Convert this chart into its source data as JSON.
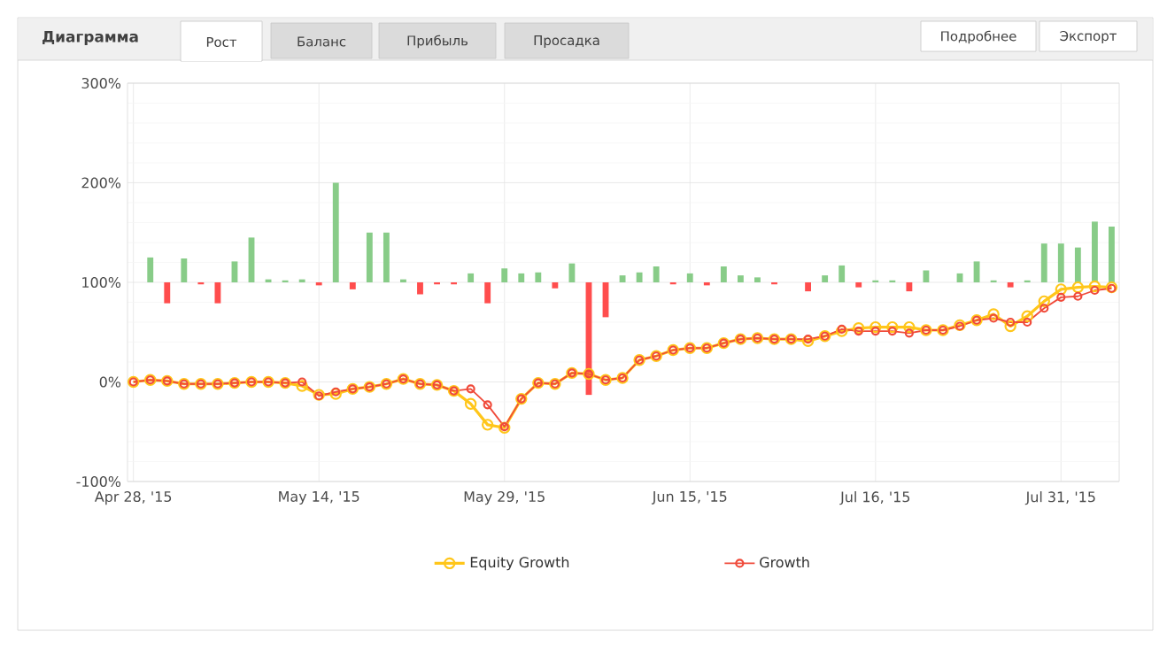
{
  "chart_data": {
    "type": "line",
    "title": "Диаграмма",
    "annotations": [
      "Рост",
      "Баланс",
      "Прибыль",
      "Просадка",
      "Подробнее",
      "Экспорт"
    ],
    "categories": [
      "Apr 28, '15",
      null,
      null,
      null,
      null,
      null,
      null,
      null,
      null,
      null,
      null,
      "May 14, '15",
      null,
      null,
      null,
      null,
      null,
      null,
      null,
      null,
      null,
      null,
      "May 29, '15",
      null,
      null,
      null,
      null,
      null,
      null,
      null,
      null,
      null,
      null,
      "Jun 15, '15",
      null,
      null,
      null,
      null,
      null,
      null,
      null,
      null,
      null,
      null,
      "Jul 16, '15",
      null,
      null,
      null,
      null,
      null,
      null,
      null,
      null,
      null,
      null,
      "Jul 31, '15",
      null,
      null,
      null
    ],
    "ylim": [
      -100,
      300
    ],
    "yticks": [
      {
        "value": -100,
        "label": "-100%"
      },
      {
        "value": 0,
        "label": "0%"
      },
      {
        "value": 100,
        "label": "100%"
      },
      {
        "value": 200,
        "label": "200%"
      },
      {
        "value": 300,
        "label": "300%"
      }
    ],
    "grid": true,
    "legend": "bottom",
    "marker": "circle",
    "line_style": "solid",
    "series": [
      {
        "type": "bar",
        "values": [
          null,
          25,
          -21,
          24,
          -2,
          -21,
          21,
          45,
          3,
          2,
          3,
          -3,
          100,
          -7,
          50,
          50,
          3,
          -12,
          -2,
          -2,
          9,
          -21,
          14,
          9,
          10,
          -6,
          19,
          -113,
          -35,
          7,
          10,
          16,
          -2,
          9,
          -3,
          16,
          7,
          5,
          -2,
          null,
          -9,
          7,
          17,
          -5,
          2,
          2,
          -9,
          12,
          null,
          9,
          21,
          2,
          -5,
          2,
          39,
          39,
          35,
          61,
          56
        ],
        "base": [
          null,
          100,
          100,
          100,
          100,
          100,
          100,
          100,
          100,
          100,
          100,
          100,
          100,
          100,
          100,
          100,
          100,
          100,
          100,
          100,
          100,
          100,
          100,
          100,
          100,
          100,
          100,
          100,
          100,
          100,
          100,
          100,
          100,
          100,
          100,
          100,
          100,
          100,
          100,
          null,
          100,
          100,
          100,
          100,
          100,
          100,
          100,
          100,
          null,
          100,
          100,
          100,
          100,
          100,
          100,
          100,
          100,
          100,
          100
        ],
        "colors": [
          null,
          "#88cc88",
          "#ff4d4d",
          "#88cc88",
          "#ff4d4d",
          "#ff4d4d",
          "#88cc88",
          "#88cc88",
          "#88cc88",
          "#88cc88",
          "#88cc88",
          "#ff4d4d",
          "#88cc88",
          "#ff4d4d",
          "#88cc88",
          "#88cc88",
          "#88cc88",
          "#ff4d4d",
          "#ff4d4d",
          "#ff4d4d",
          "#88cc88",
          "#ff4d4d",
          "#88cc88",
          "#88cc88",
          "#88cc88",
          "#ff4d4d",
          "#88cc88",
          "#ff4d4d",
          "#ff4d4d",
          "#88cc88",
          "#88cc88",
          "#88cc88",
          "#ff4d4d",
          "#88cc88",
          "#ff4d4d",
          "#88cc88",
          "#88cc88",
          "#88cc88",
          "#ff4d4d",
          null,
          "#ff4d4d",
          "#88cc88",
          "#88cc88",
          "#ff4d4d",
          "#88cc88",
          "#88cc88",
          "#ff4d4d",
          "#88cc88",
          null,
          "#88cc88",
          "#88cc88",
          "#88cc88",
          "#ff4d4d",
          "#88cc88",
          "#88cc88",
          "#88cc88",
          "#88cc88",
          "#88cc88",
          "#88cc88"
        ]
      },
      {
        "name": "Equity Growth",
        "color": "#ffc61a",
        "values": [
          0,
          2,
          1,
          -2,
          -2,
          -2,
          -1,
          0,
          0,
          -1,
          -4,
          -13,
          -12,
          -7,
          -5,
          -2,
          3,
          -2,
          -3,
          -9,
          -22,
          -43,
          -46,
          -17,
          -1,
          -2,
          9,
          8,
          2,
          4,
          22,
          26,
          32,
          34,
          34,
          39,
          43,
          44,
          43,
          43,
          41,
          46,
          51,
          54,
          55,
          55,
          55,
          52,
          52,
          57,
          62,
          68,
          56,
          66,
          81,
          93,
          95,
          96,
          95
        ]
      },
      {
        "name": "Growth",
        "color": "#f04a3a",
        "values": [
          0,
          2,
          1,
          -2,
          -2,
          -2,
          -1,
          0,
          0,
          -1,
          0,
          -14,
          -10,
          -7,
          -5,
          -2,
          3,
          -2,
          -3,
          -9,
          -7,
          -23,
          -45,
          -17,
          -1,
          -2,
          9,
          8,
          2,
          4,
          22,
          26,
          32,
          34,
          34,
          39,
          43,
          44,
          43,
          43,
          43,
          46,
          53,
          51,
          51,
          51,
          49,
          52,
          52,
          56,
          62,
          64,
          60,
          60,
          74,
          85,
          86,
          92,
          94
        ]
      }
    ]
  }
}
